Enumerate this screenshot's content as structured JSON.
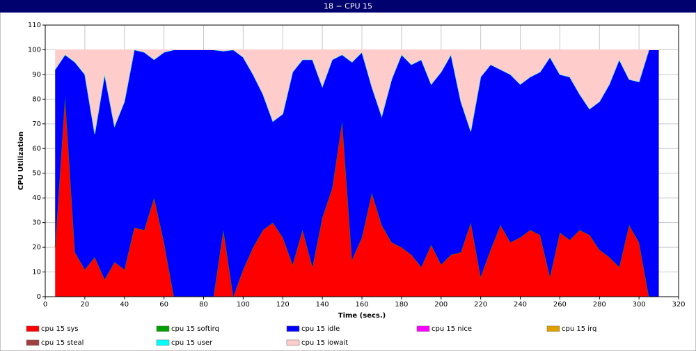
{
  "chart_data": {
    "type": "stacked_area",
    "title": "18 − CPU 15",
    "x_label": "Time (secs.)",
    "y_label": "CPU Utilization",
    "xlim": [
      0,
      320
    ],
    "xticks": [
      0,
      20,
      40,
      60,
      80,
      100,
      120,
      140,
      160,
      180,
      200,
      220,
      240,
      260,
      280,
      300,
      320
    ],
    "ylim": [
      0,
      110
    ],
    "yticks": [
      0,
      10,
      20,
      30,
      40,
      50,
      60,
      70,
      80,
      90,
      100,
      110
    ],
    "grid": true,
    "x": [
      5,
      10,
      15,
      20,
      25,
      30,
      35,
      40,
      45,
      50,
      55,
      60,
      65,
      70,
      75,
      80,
      85,
      90,
      95,
      100,
      105,
      110,
      115,
      120,
      125,
      130,
      135,
      140,
      145,
      150,
      155,
      160,
      165,
      170,
      175,
      180,
      185,
      190,
      195,
      200,
      205,
      210,
      215,
      220,
      225,
      230,
      235,
      240,
      245,
      250,
      255,
      260,
      265,
      270,
      275,
      280,
      285,
      290,
      295,
      300,
      305,
      310
    ],
    "series": [
      {
        "name": "cpu 15 sys",
        "color": "#ff0000",
        "values": [
          20,
          81,
          18,
          11,
          16,
          7,
          14,
          11,
          28,
          27,
          40,
          22,
          0,
          0,
          0,
          0,
          0,
          27,
          0,
          11,
          20,
          27,
          30,
          24,
          13,
          27,
          12,
          32,
          44,
          71,
          15,
          24,
          42,
          29,
          22,
          20,
          17,
          12,
          21,
          13,
          17,
          18,
          30,
          8,
          19,
          29,
          22,
          24,
          27,
          25,
          8,
          26,
          23,
          27,
          25,
          19,
          16,
          12,
          29,
          22,
          0,
          0
        ]
      },
      {
        "name": "cpu 15 softirq",
        "color": "#00a000",
        "values": [
          0,
          0,
          0,
          0,
          0,
          0,
          0,
          0,
          0,
          0,
          0,
          0,
          0,
          0,
          0,
          0,
          0,
          0,
          0,
          0,
          0,
          0,
          0,
          0,
          0,
          0,
          0,
          0,
          0,
          0,
          0,
          0,
          0,
          0,
          0,
          0,
          0,
          0,
          0,
          0,
          0,
          0,
          0,
          0,
          0,
          0,
          0,
          0,
          0,
          0,
          0,
          0,
          0,
          0,
          0,
          0,
          0,
          0,
          0,
          0,
          0,
          0
        ]
      },
      {
        "name": "cpu 15 idle",
        "color": "#0000ff",
        "values": [
          72,
          17,
          77,
          79,
          50,
          83,
          55,
          68,
          72,
          72,
          56,
          77,
          100,
          100,
          100,
          100,
          100,
          72.5,
          100,
          86,
          70,
          55,
          41,
          50,
          78,
          69,
          84,
          53,
          52,
          27,
          80,
          75,
          43,
          44,
          66,
          78,
          77,
          84,
          65,
          78,
          81,
          61,
          37,
          81,
          75,
          63,
          68,
          62,
          62,
          66,
          89,
          64,
          66,
          55,
          51,
          60,
          70,
          84,
          59,
          65,
          100,
          100
        ]
      },
      {
        "name": "cpu 15 nice",
        "color": "#ff00ff",
        "values": [
          0,
          0,
          0,
          0,
          0,
          0,
          0,
          0,
          0,
          0,
          0,
          0,
          0,
          0,
          0,
          0,
          0,
          0,
          0,
          0,
          0,
          0,
          0,
          0,
          0,
          0,
          0,
          0,
          0,
          0,
          0,
          0,
          0,
          0,
          0,
          0,
          0,
          0,
          0,
          0,
          0,
          0,
          0,
          0,
          0,
          0,
          0,
          0,
          0,
          0,
          0,
          0,
          0,
          0,
          0,
          0,
          0,
          0,
          0,
          0,
          0,
          0
        ]
      },
      {
        "name": "cpu 15 irq",
        "color": "#e0a000",
        "values": [
          0,
          0,
          0,
          0,
          0,
          0,
          0,
          0,
          0,
          0,
          0,
          0,
          0,
          0,
          0,
          0,
          0,
          0,
          0,
          0,
          0,
          0,
          0,
          0,
          0,
          0,
          0,
          0,
          0,
          0,
          0,
          0,
          0,
          0,
          0,
          0,
          0,
          0,
          0,
          0,
          0,
          0,
          0,
          0,
          0,
          0,
          0,
          0,
          0,
          0,
          0,
          0,
          0,
          0,
          0,
          0,
          0,
          0,
          0,
          0,
          0,
          0
        ]
      },
      {
        "name": "cpu 15 steal",
        "color": "#a04040",
        "values": [
          0,
          0,
          0,
          0,
          0,
          0,
          0,
          0,
          0,
          0,
          0,
          0,
          0,
          0,
          0,
          0,
          0,
          0,
          0,
          0,
          0,
          0,
          0,
          0,
          0,
          0,
          0,
          0,
          0,
          0,
          0,
          0,
          0,
          0,
          0,
          0,
          0,
          0,
          0,
          0,
          0,
          0,
          0,
          0,
          0,
          0,
          0,
          0,
          0,
          0,
          0,
          0,
          0,
          0,
          0,
          0,
          0,
          0,
          0,
          0,
          0,
          0
        ]
      },
      {
        "name": "cpu 15 user",
        "color": "#00ffff",
        "values": [
          0,
          0,
          0,
          0,
          0,
          0,
          0,
          0,
          0,
          0,
          0,
          0,
          0,
          0,
          0,
          0,
          0,
          0,
          0,
          0,
          0,
          0,
          0,
          0,
          0,
          0,
          0,
          0,
          0,
          0,
          0,
          0,
          0,
          0,
          0,
          0,
          0,
          0,
          0,
          0,
          0,
          0,
          0,
          0,
          0,
          0,
          0,
          0,
          0,
          0,
          0,
          0,
          0,
          0,
          0,
          0,
          0,
          0,
          0,
          0,
          0,
          0
        ]
      },
      {
        "name": "cpu 15 iowait",
        "color": "#ffcccc",
        "values": [
          8,
          2,
          5,
          10,
          34,
          10,
          31,
          21,
          0,
          1,
          4,
          1,
          0,
          0,
          0,
          0,
          0,
          0.5,
          0,
          3,
          10,
          18,
          29,
          26,
          9,
          4,
          4,
          15,
          4,
          2,
          5,
          1,
          15,
          27,
          12,
          2,
          6,
          4,
          14,
          9,
          2,
          21,
          33,
          11,
          6,
          8,
          10,
          14,
          11,
          9,
          3,
          10,
          11,
          18,
          24,
          21,
          14,
          4,
          12,
          13,
          0,
          0
        ]
      }
    ]
  }
}
